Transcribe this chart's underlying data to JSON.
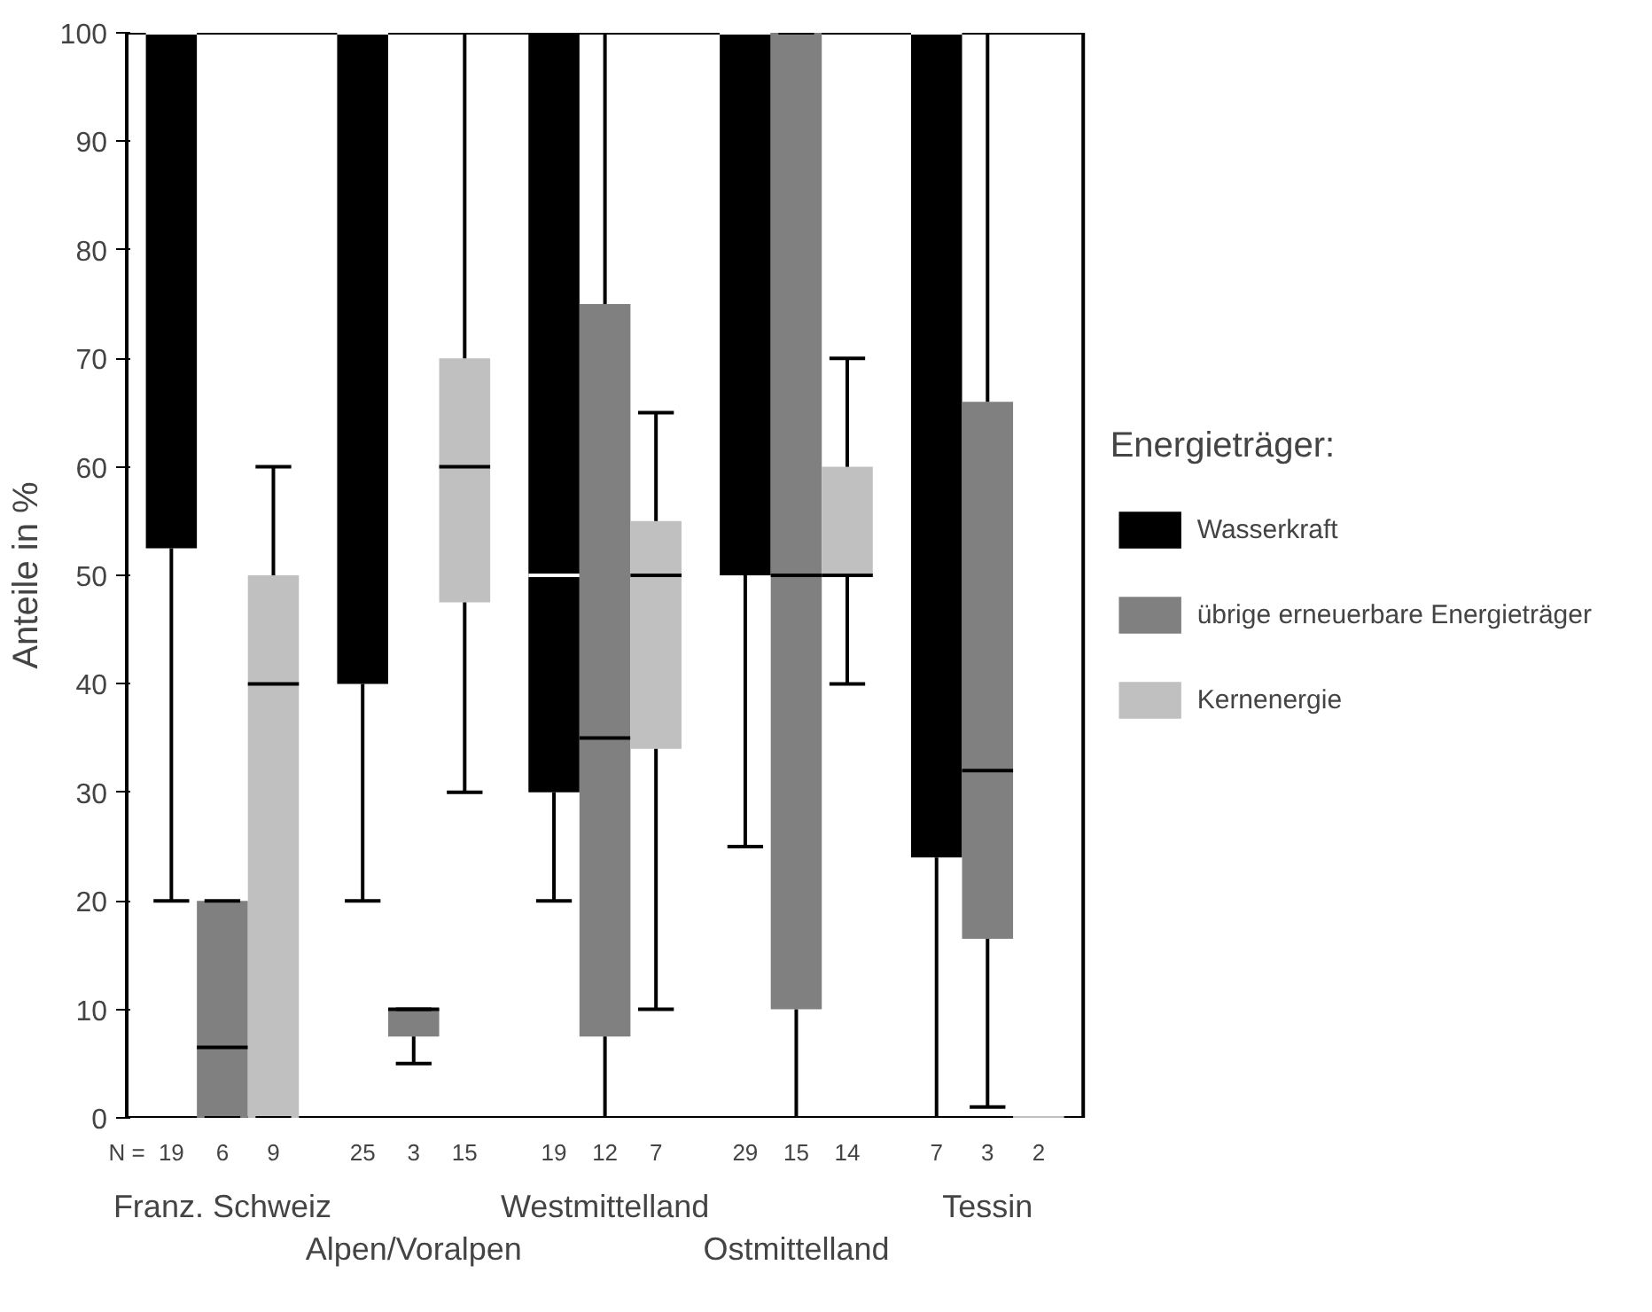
{
  "chart_data": {
    "type": "box",
    "ylabel": "Anteile in %",
    "legend_title": "Energieträger:",
    "legend": "right",
    "grid": false,
    "categories": [
      "Franz. Schweiz",
      "Alpen/Voralpen",
      "Westmittelland",
      "Ostmittelland",
      "Tessin"
    ],
    "ylim": [
      0,
      100
    ],
    "yticks": [
      0,
      10,
      20,
      30,
      40,
      50,
      60,
      70,
      80,
      90,
      100
    ],
    "series": [
      {
        "name": "Wasserkraft",
        "color": "#000000",
        "boxes": [
          {
            "low": 20,
            "q1": 52.5,
            "median": 100,
            "q3": 100,
            "high": 100
          },
          {
            "low": 20,
            "q1": 40,
            "median": 100,
            "q3": 100,
            "high": 100
          },
          {
            "low": 20,
            "q1": 30,
            "median": 50,
            "q3": 100,
            "high": 100
          },
          {
            "low": 25,
            "q1": 50,
            "median": 100,
            "q3": 100,
            "high": 100
          },
          {
            "low": 0,
            "q1": 24,
            "median": 100,
            "q3": 100,
            "high": 100
          }
        ]
      },
      {
        "name": "übrige erneuerbare Energieträger",
        "color": "#808080",
        "boxes": [
          {
            "low": 0,
            "q1": 0,
            "median": 6.5,
            "q3": 20,
            "high": 20
          },
          {
            "low": 5,
            "q1": 7.5,
            "median": 10,
            "q3": 10,
            "high": 10
          },
          {
            "low": 0,
            "q1": 7.5,
            "median": 35,
            "q3": 75,
            "high": 100
          },
          {
            "low": 0,
            "q1": 10,
            "median": 50,
            "q3": 100,
            "high": 100
          },
          {
            "low": 1,
            "q1": 16.5,
            "median": 32,
            "q3": 66,
            "high": 100
          }
        ]
      },
      {
        "name": "Kernenergie",
        "color": "#c0c0c0",
        "boxes": [
          {
            "low": 0,
            "q1": 0,
            "median": 40,
            "q3": 50,
            "high": 60
          },
          {
            "low": 30,
            "q1": 47.5,
            "median": 60,
            "q3": 70,
            "high": 100
          },
          {
            "low": 10,
            "q1": 34,
            "median": 50,
            "q3": 55,
            "high": 65
          },
          {
            "low": 40,
            "q1": 50,
            "median": 50,
            "q3": 60,
            "high": 70
          },
          {
            "low": 0,
            "q1": 0,
            "median": 0,
            "q3": 0,
            "high": 0
          }
        ]
      }
    ],
    "annotations": [
      "N =",
      "19",
      "6",
      "9",
      "25",
      "3",
      "15",
      "19",
      "12",
      "7",
      "29",
      "15",
      "14",
      "7",
      "3",
      "2"
    ]
  }
}
